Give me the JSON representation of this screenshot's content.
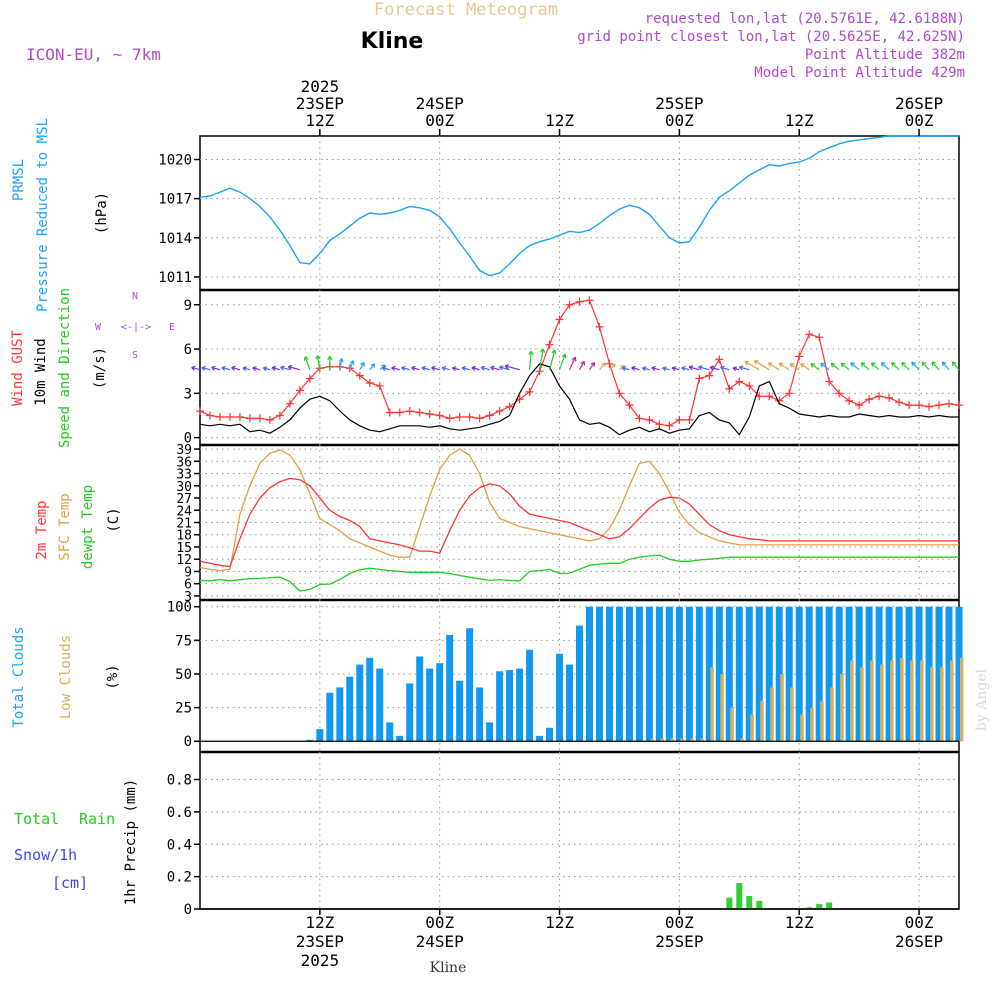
{
  "header": {
    "meteogram_title": "Forecast Meteogram",
    "location": "Kline",
    "model": "ICON-EU, ~ 7km",
    "requested": "requested lon,lat (20.5761E, 42.6188N)",
    "grid_point": "grid point closest lon,lat (20.5625E, 42.625N)",
    "point_altitude": "Point Altitude 382m",
    "model_altitude": "Model Point Altitude 429m",
    "watermark": "by Angel",
    "footer_location": "Kline"
  },
  "colors": {
    "pressure": "#1aa3ff",
    "gust": "#ff3333",
    "wind": "#000000",
    "temp": "#ff3333",
    "sfc": "#e0a040",
    "dewpt": "#22cc22",
    "total_clouds": "#1099ee",
    "low_clouds": "#d4b060",
    "rain": "#33cc33",
    "purple": "#b048d0"
  },
  "time_axis": {
    "top_labels": [
      {
        "h": 12,
        "lines": [
          "2025",
          "23SEP",
          "12Z"
        ]
      },
      {
        "h": 24,
        "lines": [
          "24SEP",
          "00Z"
        ]
      },
      {
        "h": 36,
        "lines": [
          "12Z"
        ]
      },
      {
        "h": 48,
        "lines": [
          "25SEP",
          "00Z"
        ]
      },
      {
        "h": 60,
        "lines": [
          "12Z"
        ]
      },
      {
        "h": 72,
        "lines": [
          "26SEP",
          "00Z"
        ]
      }
    ],
    "bottom_labels": [
      {
        "h": 12,
        "lines": [
          "12Z",
          "23SEP",
          "2025"
        ]
      },
      {
        "h": 24,
        "lines": [
          "00Z",
          "24SEP"
        ]
      },
      {
        "h": 36,
        "lines": [
          "12Z"
        ]
      },
      {
        "h": 48,
        "lines": [
          "00Z",
          "25SEP"
        ]
      },
      {
        "h": 60,
        "lines": [
          "12Z"
        ]
      },
      {
        "h": 72,
        "lines": [
          "00Z",
          "26SEP"
        ]
      }
    ],
    "grid_hours": [
      12,
      24,
      36,
      48,
      60,
      72
    ]
  },
  "chart_data": [
    {
      "type": "line",
      "name": "pressure",
      "labels": [
        "PRMSL",
        "Pressure Reduced to MSL",
        "(hPa)"
      ],
      "ylim": [
        1010,
        1021.8
      ],
      "yticks": [
        1011,
        1014,
        1017,
        1020
      ],
      "x": [
        0,
        1,
        2,
        3,
        4,
        5,
        6,
        7,
        8,
        9,
        10,
        11,
        12,
        13,
        14,
        15,
        16,
        17,
        18,
        19,
        20,
        21,
        22,
        23,
        24,
        25,
        26,
        27,
        28,
        29,
        30,
        31,
        32,
        33,
        34,
        35,
        36,
        37,
        38,
        39,
        40,
        41,
        42,
        43,
        44,
        45,
        46,
        47,
        48,
        49,
        50,
        51,
        52,
        53,
        54,
        55,
        56,
        57,
        58,
        59,
        60,
        61,
        62,
        63,
        64,
        65,
        66,
        67,
        68,
        69,
        70,
        71,
        72,
        73,
        74,
        75,
        76
      ],
      "values": [
        1017.1,
        1017.2,
        1017.5,
        1017.8,
        1017.5,
        1017.0,
        1016.4,
        1015.6,
        1014.6,
        1013.4,
        1012.1,
        1012.0,
        1012.8,
        1013.8,
        1014.3,
        1014.9,
        1015.5,
        1015.9,
        1015.8,
        1015.9,
        1016.1,
        1016.4,
        1016.3,
        1016.1,
        1015.6,
        1014.7,
        1013.6,
        1012.6,
        1011.5,
        1011.1,
        1011.3,
        1012.0,
        1012.8,
        1013.4,
        1013.7,
        1013.9,
        1014.2,
        1014.5,
        1014.4,
        1014.6,
        1015.1,
        1015.7,
        1016.2,
        1016.5,
        1016.3,
        1015.8,
        1014.9,
        1014.0,
        1013.6,
        1013.7,
        1014.8,
        1016.1,
        1017.1,
        1017.6,
        1018.2,
        1018.8,
        1019.2,
        1019.6,
        1019.5,
        1019.7,
        1019.8,
        1020.1,
        1020.6,
        1020.9,
        1021.2,
        1021.4,
        1021.5,
        1021.6,
        1021.7,
        1021.8,
        1021.8,
        1021.8,
        1021.8,
        1021.8,
        1021.8,
        1021.8,
        1021.8
      ]
    },
    {
      "type": "line",
      "name": "wind",
      "labels": [
        "Wind GUST",
        "10m Wind",
        "Speed and Direction",
        "(m/s)"
      ],
      "compass": [
        "N",
        "W",
        "<-|->",
        "E",
        "S"
      ],
      "ylim": [
        -0.5,
        10
      ],
      "yticks": [
        0,
        3,
        6,
        9
      ],
      "x": [
        0,
        1,
        2,
        3,
        4,
        5,
        6,
        7,
        8,
        9,
        10,
        11,
        12,
        13,
        14,
        15,
        16,
        17,
        18,
        19,
        20,
        21,
        22,
        23,
        24,
        25,
        26,
        27,
        28,
        29,
        30,
        31,
        32,
        33,
        34,
        35,
        36,
        37,
        38,
        39,
        40,
        41,
        42,
        43,
        44,
        45,
        46,
        47,
        48,
        49,
        50,
        51,
        52,
        53,
        54,
        55,
        56,
        57,
        58,
        59,
        60,
        61,
        62,
        63,
        64,
        65,
        66,
        67,
        68,
        69,
        70,
        71,
        72,
        73,
        74,
        75,
        76
      ],
      "series": [
        {
          "name": "Wind GUST",
          "values": [
            1.8,
            1.5,
            1.4,
            1.4,
            1.4,
            1.3,
            1.3,
            1.2,
            1.5,
            2.3,
            3.2,
            4.0,
            4.7,
            4.8,
            4.8,
            4.7,
            4.2,
            3.7,
            3.5,
            1.7,
            1.7,
            1.8,
            1.7,
            1.6,
            1.5,
            1.3,
            1.4,
            1.4,
            1.3,
            1.5,
            1.8,
            2.1,
            2.6,
            3.1,
            4.5,
            6.3,
            8.0,
            9.0,
            9.2,
            9.3,
            7.5,
            5.0,
            3.0,
            2.2,
            1.3,
            1.2,
            0.9,
            0.8,
            1.2,
            1.2,
            4.0,
            4.2,
            5.3,
            3.3,
            3.8,
            3.5,
            2.8,
            2.8,
            2.5,
            3.0,
            5.5,
            7.0,
            6.8,
            3.8,
            3.0,
            2.5,
            2.2,
            2.6,
            2.8,
            2.7,
            2.4,
            2.2,
            2.2,
            2.1,
            2.2,
            2.3,
            2.2
          ]
        },
        {
          "name": "10m Wind",
          "values": [
            0.9,
            0.8,
            0.9,
            0.8,
            0.9,
            0.4,
            0.5,
            0.3,
            0.7,
            1.2,
            2.0,
            2.6,
            2.8,
            2.5,
            1.8,
            1.2,
            0.8,
            0.5,
            0.4,
            0.6,
            0.8,
            0.8,
            0.8,
            0.7,
            0.8,
            0.6,
            0.5,
            0.6,
            0.7,
            0.9,
            1.1,
            1.5,
            3.0,
            4.2,
            5.0,
            4.8,
            3.5,
            2.6,
            1.2,
            0.9,
            1.0,
            0.7,
            0.2,
            0.5,
            0.7,
            0.4,
            0.6,
            0.3,
            0.5,
            0.6,
            1.5,
            1.7,
            1.2,
            1.0,
            0.2,
            1.4,
            3.5,
            3.8,
            2.3,
            2.0,
            1.6,
            1.5,
            1.4,
            1.5,
            1.4,
            1.4,
            1.6,
            1.5,
            1.4,
            1.5,
            1.4,
            1.4,
            1.5,
            1.4,
            1.5,
            1.4,
            1.4
          ]
        }
      ]
    },
    {
      "type": "line",
      "name": "temperature",
      "labels": [
        "2m Temp",
        "SFC Temp",
        "dewpt Temp",
        "(C)"
      ],
      "ylim": [
        2,
        40
      ],
      "yticks": [
        3,
        6,
        9,
        12,
        15,
        18,
        21,
        24,
        27,
        30,
        33,
        36,
        39
      ],
      "x": [
        0,
        1,
        2,
        3,
        4,
        5,
        6,
        7,
        8,
        9,
        10,
        11,
        12,
        13,
        14,
        15,
        16,
        17,
        18,
        19,
        20,
        21,
        22,
        23,
        24,
        25,
        26,
        27,
        28,
        29,
        30,
        31,
        32,
        33,
        34,
        35,
        36,
        37,
        38,
        39,
        40,
        41,
        42,
        43,
        44,
        45,
        46,
        47,
        48,
        49,
        50,
        51,
        52,
        53,
        54,
        55,
        56,
        57,
        58,
        59,
        60,
        61,
        62,
        63,
        64,
        65,
        66,
        67,
        68,
        69,
        70,
        71,
        72,
        73,
        74,
        75,
        76
      ],
      "series": [
        {
          "name": "2m Temp",
          "values": [
            11.5,
            11.0,
            10.5,
            10.2,
            17.0,
            23.0,
            27.0,
            29.5,
            31.0,
            31.8,
            31.5,
            30.0,
            27.0,
            24.0,
            22.5,
            21.5,
            20.0,
            17.0,
            16.5,
            16.0,
            15.5,
            14.8,
            14.0,
            14.0,
            13.5,
            19.0,
            24.0,
            27.5,
            29.5,
            30.5,
            30.0,
            28.0,
            25.0,
            23.0,
            22.5,
            22.0,
            21.5,
            21.0,
            20.0,
            19.0,
            18.0,
            17.0,
            17.5,
            19.5,
            22.0,
            24.5,
            26.5,
            27.2,
            27.0,
            25.5,
            23.0,
            20.5,
            19.0,
            18.0,
            17.5,
            17.0,
            16.8,
            16.5,
            16.5,
            16.5,
            16.5,
            16.5,
            16.5,
            16.5,
            16.5,
            16.5,
            16.5,
            16.5,
            16.5,
            16.5,
            16.5,
            16.5,
            16.5,
            16.5,
            16.5,
            16.5,
            16.5
          ]
        },
        {
          "name": "SFC Temp",
          "values": [
            10.0,
            9.5,
            9.2,
            9.5,
            23.0,
            30.0,
            35.5,
            38.0,
            38.8,
            37.5,
            34.0,
            28.0,
            22.0,
            20.5,
            19.0,
            17.0,
            16.0,
            15.0,
            14.0,
            13.0,
            12.5,
            12.5,
            20.0,
            27.5,
            34.0,
            37.5,
            39.0,
            37.5,
            33.0,
            26.0,
            22.0,
            21.0,
            20.0,
            19.5,
            19.0,
            18.5,
            18.0,
            17.5,
            17.0,
            16.5,
            17.0,
            19.5,
            24.0,
            30.0,
            35.5,
            36.0,
            33.0,
            28.5,
            23.5,
            20.5,
            18.5,
            17.5,
            16.5,
            16.0,
            15.5,
            15.5,
            15.5,
            15.5,
            15.5,
            15.5,
            15.5,
            15.5,
            15.5,
            15.5,
            15.5,
            15.5,
            15.5,
            15.5,
            15.5,
            15.5,
            15.5,
            15.5,
            15.5,
            15.5,
            15.5,
            15.5,
            15.5
          ]
        },
        {
          "name": "dewpt Temp",
          "values": [
            6.8,
            6.7,
            7.0,
            6.7,
            7.0,
            7.2,
            7.3,
            7.5,
            7.6,
            6.5,
            4.2,
            4.6,
            5.8,
            5.9,
            7.0,
            8.5,
            9.4,
            9.8,
            9.5,
            9.2,
            9.0,
            8.8,
            8.8,
            8.8,
            8.8,
            8.5,
            8.0,
            7.6,
            7.2,
            6.8,
            7.0,
            6.8,
            6.7,
            9.0,
            9.2,
            9.5,
            8.5,
            8.6,
            9.5,
            10.5,
            10.8,
            11.0,
            11.0,
            12.0,
            12.5,
            12.8,
            13.0,
            12.0,
            11.5,
            11.5,
            11.8,
            12.0,
            12.2,
            12.5,
            12.5,
            12.5,
            12.5,
            12.5,
            12.5,
            12.5,
            12.5,
            12.5,
            12.5,
            12.5,
            12.5,
            12.5,
            12.5,
            12.5,
            12.5,
            12.5,
            12.5,
            12.5,
            12.5,
            12.5,
            12.5,
            12.5,
            12.5
          ]
        }
      ]
    },
    {
      "type": "bar",
      "name": "clouds",
      "labels": [
        "Total Clouds",
        "Low Clouds",
        "(%)"
      ],
      "ylim": [
        -8,
        105
      ],
      "yticks": [
        0,
        25,
        50,
        75,
        100
      ],
      "x": [
        0,
        1,
        2,
        3,
        4,
        5,
        6,
        7,
        8,
        9,
        10,
        11,
        12,
        13,
        14,
        15,
        16,
        17,
        18,
        19,
        20,
        21,
        22,
        23,
        24,
        25,
        26,
        27,
        28,
        29,
        30,
        31,
        32,
        33,
        34,
        35,
        36,
        37,
        38,
        39,
        40,
        41,
        42,
        43,
        44,
        45,
        46,
        47,
        48,
        49,
        50,
        51,
        52,
        53,
        54,
        55,
        56,
        57,
        58,
        59,
        60,
        61,
        62,
        63,
        64,
        65,
        66,
        67,
        68,
        69,
        70,
        71,
        72,
        73,
        74,
        75,
        76
      ],
      "series": [
        {
          "name": "Total Clouds",
          "values": [
            0,
            0,
            0,
            0,
            0,
            0,
            0,
            0,
            0,
            0,
            0,
            1,
            9,
            36,
            40,
            48,
            57,
            62,
            54,
            14,
            4,
            43,
            63,
            54,
            58,
            79,
            45,
            84,
            40,
            14,
            52,
            53,
            54,
            68,
            4,
            10,
            65,
            57,
            86,
            100,
            100,
            100,
            100,
            100,
            100,
            100,
            100,
            100,
            100,
            100,
            100,
            100,
            100,
            100,
            100,
            100,
            100,
            100,
            100,
            100,
            100,
            100,
            100,
            100,
            100,
            100,
            100,
            100,
            100,
            100,
            100,
            100,
            100,
            100,
            100,
            100,
            100
          ]
        },
        {
          "name": "Low Clouds",
          "values": [
            0,
            0,
            0,
            0,
            0,
            0,
            0,
            0,
            0,
            0,
            0,
            0,
            0,
            0,
            0,
            0,
            0,
            0,
            0,
            0,
            0,
            0,
            0,
            0,
            0,
            0,
            0,
            0,
            0,
            0,
            0,
            0,
            0,
            0,
            0,
            0,
            0,
            0,
            0,
            0,
            0,
            0,
            0,
            0,
            0,
            2,
            2,
            2,
            2,
            2,
            2,
            55,
            50,
            25,
            2,
            20,
            30,
            40,
            50,
            40,
            20,
            25,
            30,
            40,
            50,
            60,
            55,
            60,
            57,
            60,
            62,
            60,
            60,
            55,
            55,
            60,
            62
          ]
        }
      ]
    },
    {
      "type": "bar",
      "name": "precip",
      "labels": [
        "Total",
        "Rain",
        "Snow/1h",
        "[cm]",
        "1hr Precip (mm)"
      ],
      "ylim": [
        0,
        0.97
      ],
      "yticks": [
        0,
        0.2,
        0.4,
        0.6,
        0.8
      ],
      "x": [
        53,
        54,
        55,
        56,
        61,
        62,
        63
      ],
      "values": [
        0.07,
        0.16,
        0.08,
        0.05,
        0.01,
        0.03,
        0.04
      ]
    }
  ]
}
